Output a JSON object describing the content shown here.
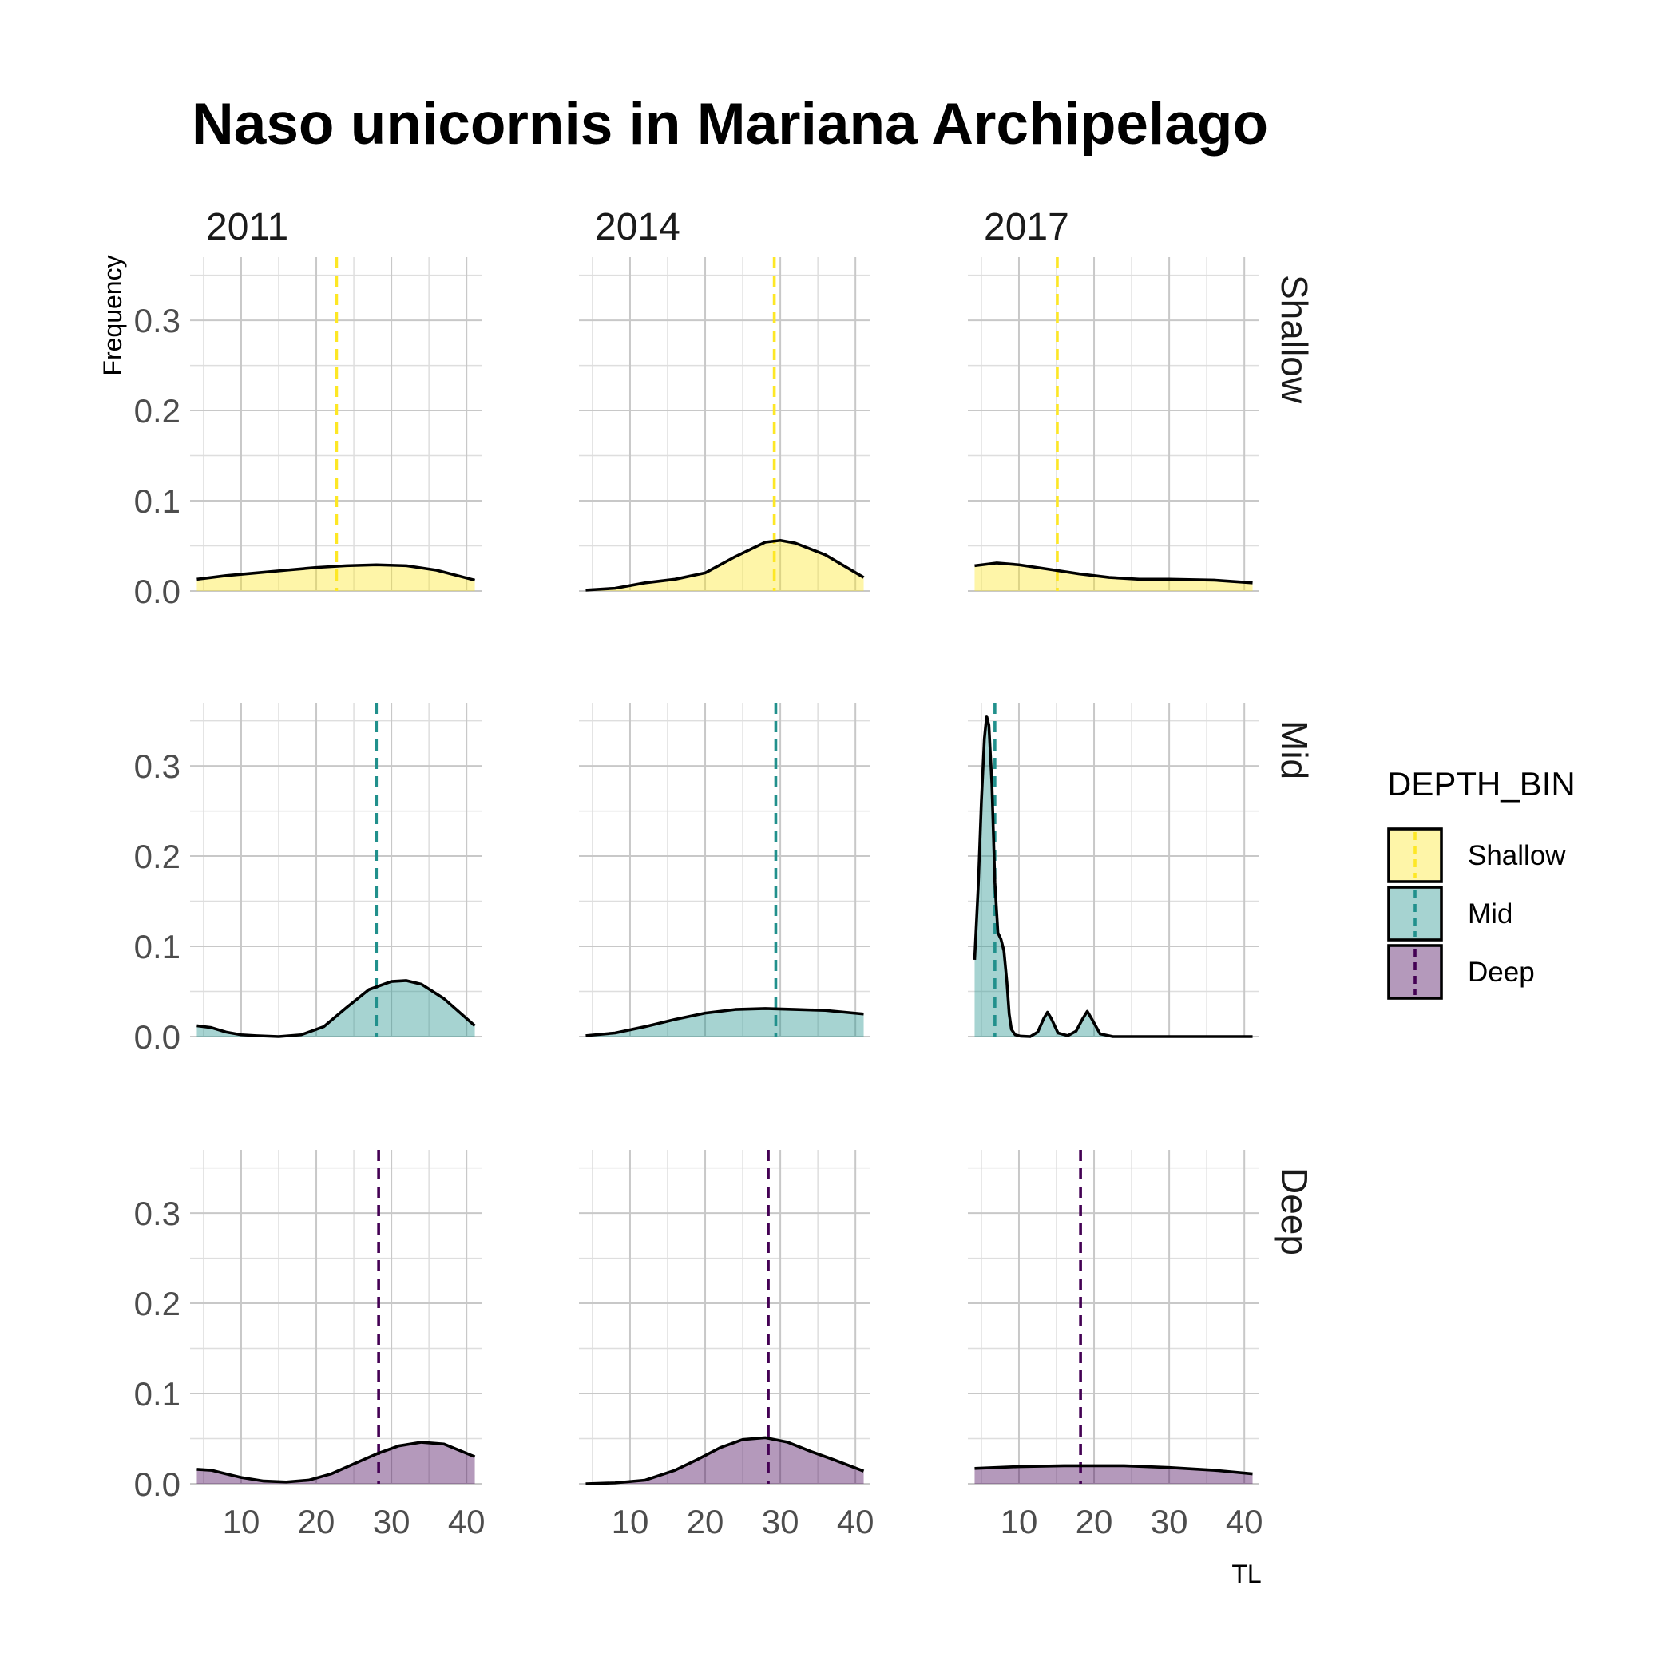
{
  "chart_data": {
    "type": "area",
    "title": "Naso unicornis in Mariana Archipelago",
    "xlabel": "TL",
    "ylabel": "Frequency",
    "xlim": [
      3.2,
      42.0
    ],
    "ylim": [
      0,
      0.37
    ],
    "x_ticks": [
      10,
      20,
      30,
      40
    ],
    "y_ticks": [
      0.0,
      0.1,
      0.2,
      0.3
    ],
    "y_tick_labels": [
      "0.0",
      "0.1",
      "0.2",
      "0.3"
    ],
    "grid": true,
    "columns": [
      "2011",
      "2014",
      "2017"
    ],
    "rows": [
      "Shallow",
      "Mid",
      "Deep"
    ],
    "legend": {
      "title": "DEPTH_BIN",
      "position": "right",
      "entries": [
        {
          "label": "Shallow",
          "fill": "#fde725",
          "line": "#fde725"
        },
        {
          "label": "Mid",
          "fill": "#21908c",
          "line": "#21908c"
        },
        {
          "label": "Deep",
          "fill": "#440154",
          "line": "#440154"
        }
      ]
    },
    "colors": {
      "Shallow": "#fde725",
      "Mid": "#21908c",
      "Deep": "#440154"
    },
    "panels": [
      {
        "year": "2011",
        "depth": "Shallow",
        "mean_TL": 22.7,
        "x": [
          4.1,
          8,
          12,
          16,
          20,
          24,
          28,
          32,
          36,
          41.1
        ],
        "y": [
          0.013,
          0.017,
          0.02,
          0.023,
          0.026,
          0.028,
          0.029,
          0.028,
          0.023,
          0.012
        ]
      },
      {
        "year": "2014",
        "depth": "Shallow",
        "mean_TL": 29.2,
        "x": [
          4.1,
          8,
          12,
          16,
          20,
          24,
          28,
          30,
          32,
          36,
          41.1
        ],
        "y": [
          0.001,
          0.003,
          0.009,
          0.013,
          0.02,
          0.038,
          0.054,
          0.056,
          0.053,
          0.04,
          0.015
        ]
      },
      {
        "year": "2017",
        "depth": "Shallow",
        "mean_TL": 15.1,
        "x": [
          4.1,
          7,
          10,
          14,
          18,
          22,
          26,
          30,
          36,
          41.1
        ],
        "y": [
          0.028,
          0.031,
          0.029,
          0.024,
          0.019,
          0.015,
          0.013,
          0.013,
          0.012,
          0.009
        ]
      },
      {
        "year": "2011",
        "depth": "Mid",
        "mean_TL": 28.0,
        "x": [
          4.1,
          6,
          8,
          10,
          12,
          15,
          18,
          21,
          24,
          27,
          30,
          32,
          34,
          37,
          41.1
        ],
        "y": [
          0.012,
          0.01,
          0.005,
          0.002,
          0.001,
          0.0,
          0.002,
          0.011,
          0.032,
          0.052,
          0.061,
          0.062,
          0.058,
          0.042,
          0.012
        ]
      },
      {
        "year": "2014",
        "depth": "Mid",
        "mean_TL": 29.4,
        "x": [
          4.1,
          8,
          12,
          16,
          20,
          24,
          28,
          32,
          36,
          41.1
        ],
        "y": [
          0.001,
          0.004,
          0.011,
          0.019,
          0.026,
          0.03,
          0.031,
          0.03,
          0.029,
          0.025
        ]
      },
      {
        "year": "2017",
        "depth": "Mid",
        "mean_TL": 6.8,
        "x": [
          4.1,
          4.6,
          5.0,
          5.4,
          5.7,
          6.0,
          6.4,
          6.8,
          7.2,
          7.6,
          8.0,
          8.4,
          8.7,
          9.0,
          9.5,
          10.2,
          11.5,
          12.5,
          13.3,
          13.8,
          14.3,
          15.2,
          16.5,
          17.6,
          18.5,
          19.1,
          19.8,
          20.8,
          22.5,
          30,
          41.1
        ],
        "y": [
          0.085,
          0.17,
          0.26,
          0.33,
          0.355,
          0.345,
          0.28,
          0.17,
          0.115,
          0.108,
          0.095,
          0.06,
          0.025,
          0.008,
          0.002,
          0.0005,
          0.0,
          0.005,
          0.02,
          0.027,
          0.02,
          0.004,
          0.001,
          0.006,
          0.02,
          0.028,
          0.018,
          0.003,
          0.0,
          0.0,
          0.0
        ]
      },
      {
        "year": "2011",
        "depth": "Deep",
        "mean_TL": 28.3,
        "x": [
          4.1,
          6,
          8,
          10,
          13,
          16,
          19,
          22,
          25,
          28,
          31,
          34,
          37,
          41.1
        ],
        "y": [
          0.016,
          0.015,
          0.011,
          0.007,
          0.003,
          0.002,
          0.004,
          0.011,
          0.022,
          0.033,
          0.042,
          0.046,
          0.044,
          0.03
        ]
      },
      {
        "year": "2014",
        "depth": "Deep",
        "mean_TL": 28.4,
        "x": [
          4.1,
          8,
          12,
          16,
          19,
          22,
          25,
          28,
          31,
          34,
          37,
          41.1
        ],
        "y": [
          0.0,
          0.001,
          0.004,
          0.015,
          0.027,
          0.04,
          0.049,
          0.051,
          0.046,
          0.036,
          0.027,
          0.014
        ]
      },
      {
        "year": "2017",
        "depth": "Deep",
        "mean_TL": 18.2,
        "x": [
          4.1,
          10,
          16,
          20,
          24,
          30,
          36,
          41.1
        ],
        "y": [
          0.017,
          0.019,
          0.02,
          0.02,
          0.02,
          0.018,
          0.015,
          0.011
        ]
      }
    ]
  }
}
